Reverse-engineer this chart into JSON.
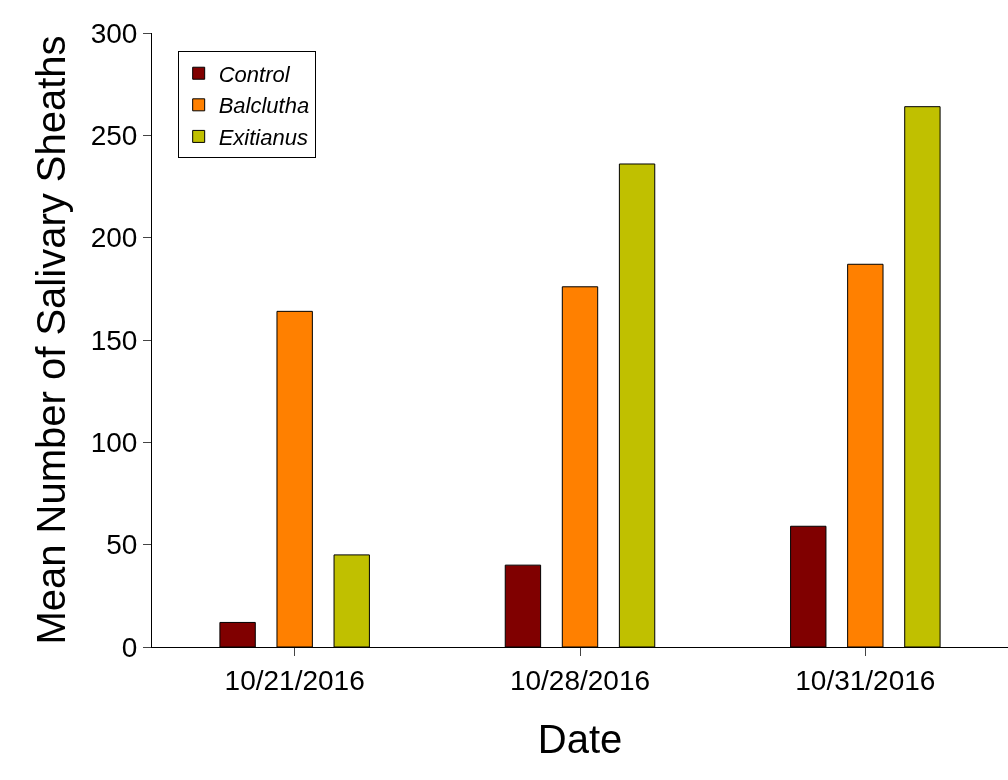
{
  "chart_data": {
    "type": "bar",
    "xlabel": "Date",
    "ylabel": "Mean Number of Salivary Sheaths",
    "categories": [
      "10/21/2016",
      "10/28/2016",
      "10/31/2016"
    ],
    "series": [
      {
        "name": "Control",
        "color": "#800000",
        "values": [
          12,
          40,
          59
        ]
      },
      {
        "name": "Balclutha",
        "color": "#ff8000",
        "values": [
          164,
          176,
          187
        ]
      },
      {
        "name": "Exitianus",
        "color": "#c0c000",
        "values": [
          45,
          236,
          264
        ]
      }
    ],
    "ylim": [
      0,
      300
    ],
    "yticks": [
      0,
      50,
      100,
      150,
      200,
      250,
      300
    ],
    "grid": false,
    "legend": "top left"
  }
}
